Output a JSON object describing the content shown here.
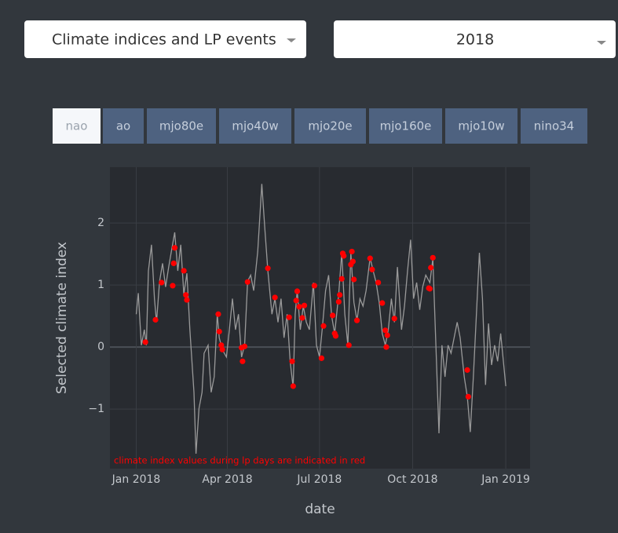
{
  "dropdowns": [
    "Climate indices and LP events",
    "2018"
  ],
  "tabs": [
    "nao",
    "ao",
    "mjo80e",
    "mjo40w",
    "mjo20e",
    "mjo160e",
    "mjo10w",
    "nino34"
  ],
  "active_tab": 0,
  "chart_data": {
    "type": "line",
    "xlabel": "date",
    "ylabel": "Selected climate index",
    "annotation": "climate index values during lp days are indicated in red",
    "xlim": [
      "2017-12-06",
      "2019-01-25"
    ],
    "xticks": [
      {
        "value": "2018-01-01",
        "label": "Jan 2018"
      },
      {
        "value": "2018-04-01",
        "label": "Apr 2018"
      },
      {
        "value": "2018-07-01",
        "label": "Jul 2018"
      },
      {
        "value": "2018-10-01",
        "label": "Oct 2018"
      },
      {
        "value": "2019-01-01",
        "label": "Jan 2019"
      }
    ],
    "ylim": [
      -1.96,
      2.9
    ],
    "yticks": [
      2,
      1,
      0,
      {
        "value": -1,
        "label": "−1"
      }
    ],
    "grid": true,
    "series": [
      {
        "type": "line",
        "color": "#9a9a9a",
        "x": [
          "2018-01-01",
          "2018-01-03",
          "2018-01-06",
          "2018-01-09",
          "2018-01-11",
          "2018-01-13",
          "2018-01-16",
          "2018-01-19",
          "2018-01-21",
          "2018-01-24",
          "2018-01-27",
          "2018-01-30",
          "2018-02-02",
          "2018-02-05",
          "2018-02-08",
          "2018-02-11",
          "2018-02-14",
          "2018-02-17",
          "2018-02-20",
          "2018-02-23",
          "2018-02-27",
          "2018-03-01",
          "2018-03-04",
          "2018-03-07",
          "2018-03-09",
          "2018-03-13",
          "2018-03-16",
          "2018-03-19",
          "2018-03-22",
          "2018-03-24",
          "2018-03-27",
          "2018-03-31",
          "2018-04-03",
          "2018-04-06",
          "2018-04-09",
          "2018-04-12",
          "2018-04-15",
          "2018-04-18",
          "2018-04-21",
          "2018-04-24",
          "2018-04-27",
          "2018-05-01",
          "2018-05-05",
          "2018-05-08",
          "2018-05-11",
          "2018-05-15",
          "2018-05-18",
          "2018-05-21",
          "2018-05-24",
          "2018-05-27",
          "2018-05-30",
          "2018-06-02",
          "2018-06-05",
          "2018-06-07",
          "2018-06-09",
          "2018-06-12",
          "2018-06-15",
          "2018-06-18",
          "2018-06-21",
          "2018-06-25",
          "2018-06-28",
          "2018-07-01",
          "2018-07-04",
          "2018-07-07",
          "2018-07-10",
          "2018-07-13",
          "2018-07-16",
          "2018-07-20",
          "2018-07-23",
          "2018-07-26",
          "2018-07-29",
          "2018-08-01",
          "2018-08-04",
          "2018-08-07",
          "2018-08-10",
          "2018-08-13",
          "2018-08-16",
          "2018-08-20",
          "2018-08-23",
          "2018-08-26",
          "2018-08-29",
          "2018-09-01",
          "2018-09-04",
          "2018-09-07",
          "2018-09-10",
          "2018-09-13",
          "2018-09-16",
          "2018-09-20",
          "2018-09-23",
          "2018-09-26",
          "2018-09-29",
          "2018-10-02",
          "2018-10-05",
          "2018-10-08",
          "2018-10-11",
          "2018-10-14",
          "2018-10-18",
          "2018-10-21",
          "2018-10-24",
          "2018-10-27",
          "2018-10-30",
          "2018-11-02",
          "2018-11-05",
          "2018-11-08",
          "2018-11-11",
          "2018-11-14",
          "2018-11-17",
          "2018-11-21",
          "2018-11-24",
          "2018-11-27",
          "2018-11-30",
          "2018-12-03",
          "2018-12-06",
          "2018-12-09",
          "2018-12-12",
          "2018-12-15",
          "2018-12-18",
          "2018-12-21",
          "2018-12-24",
          "2018-12-27",
          "2019-01-01"
        ],
        "values": [
          0.53,
          0.87,
          0.03,
          0.28,
          0.03,
          1.23,
          1.65,
          0.78,
          0.4,
          1.06,
          1.35,
          0.97,
          1.29,
          1.57,
          1.85,
          1.23,
          1.65,
          0.85,
          1.19,
          0.28,
          -0.73,
          -1.72,
          -0.99,
          -0.73,
          -0.1,
          0.03,
          -0.73,
          -0.48,
          0.53,
          0.15,
          -0.04,
          -0.16,
          0.28,
          0.78,
          0.28,
          0.53,
          -0.16,
          0.03,
          1.06,
          1.16,
          0.91,
          1.54,
          2.63,
          1.92,
          1.23,
          0.53,
          0.78,
          0.4,
          0.78,
          0.15,
          0.53,
          -0.23,
          -0.65,
          0.53,
          0.91,
          0.28,
          0.66,
          0.4,
          0.28,
          1.04,
          0.03,
          -0.16,
          0.34,
          0.91,
          1.16,
          0.5,
          0.22,
          0.85,
          1.52,
          0.53,
          0.03,
          1.52,
          0.72,
          0.43,
          0.78,
          0.66,
          0.91,
          1.44,
          1.23,
          1.04,
          0.72,
          0.22,
          0.03,
          0.28,
          0.78,
          0.4,
          1.29,
          0.28,
          0.66,
          1.23,
          1.73,
          0.78,
          1.04,
          0.6,
          0.97,
          1.16,
          1.04,
          1.42,
          0.03,
          -1.39,
          0.03,
          -0.48,
          0.03,
          -0.1,
          0.15,
          0.4,
          0.15,
          -0.48,
          -0.8,
          -1.37,
          -0.48,
          0.53,
          1.52,
          0.78,
          -0.61,
          0.38,
          -0.29,
          0.03,
          -0.23,
          0.22,
          -0.63
        ]
      },
      {
        "type": "scatter",
        "color": "#ff0000",
        "x": [
          "2018-01-10",
          "2018-01-20",
          "2018-01-26",
          "2018-02-06",
          "2018-02-07",
          "2018-02-08",
          "2018-02-17",
          "2018-02-19",
          "2018-02-20",
          "2018-03-23",
          "2018-03-24",
          "2018-03-26",
          "2018-03-27",
          "2018-04-15",
          "2018-04-16",
          "2018-04-18",
          "2018-04-21",
          "2018-05-11",
          "2018-05-18",
          "2018-06-01",
          "2018-06-04",
          "2018-06-05",
          "2018-06-08",
          "2018-06-09",
          "2018-06-11",
          "2018-06-14",
          "2018-06-16",
          "2018-06-26",
          "2018-07-03",
          "2018-07-05",
          "2018-07-14",
          "2018-07-16",
          "2018-07-17",
          "2018-07-20",
          "2018-07-21",
          "2018-07-23",
          "2018-07-24",
          "2018-07-25",
          "2018-07-30",
          "2018-08-01",
          "2018-08-02",
          "2018-08-03",
          "2018-08-04",
          "2018-08-07",
          "2018-08-20",
          "2018-08-22",
          "2018-08-28",
          "2018-09-01",
          "2018-09-04",
          "2018-09-05",
          "2018-09-06",
          "2018-09-13",
          "2018-10-17",
          "2018-10-18",
          "2018-10-19",
          "2018-10-21",
          "2018-11-24",
          "2018-11-25"
        ],
        "values": [
          0.08,
          0.44,
          1.04,
          0.99,
          1.35,
          1.6,
          1.23,
          0.84,
          0.76,
          0.53,
          0.25,
          0.03,
          -0.04,
          -0.01,
          -0.23,
          0.01,
          1.05,
          1.27,
          0.8,
          0.48,
          -0.23,
          -0.63,
          0.75,
          0.9,
          0.65,
          0.47,
          0.67,
          0.99,
          -0.18,
          0.34,
          0.51,
          0.22,
          0.18,
          0.73,
          0.84,
          1.1,
          1.51,
          1.47,
          0.03,
          1.33,
          1.54,
          1.38,
          1.09,
          0.43,
          1.43,
          1.25,
          1.04,
          0.71,
          0.27,
          0.0,
          0.19,
          0.46,
          0.95,
          0.94,
          1.28,
          1.44,
          -0.37,
          -0.8
        ]
      }
    ]
  }
}
